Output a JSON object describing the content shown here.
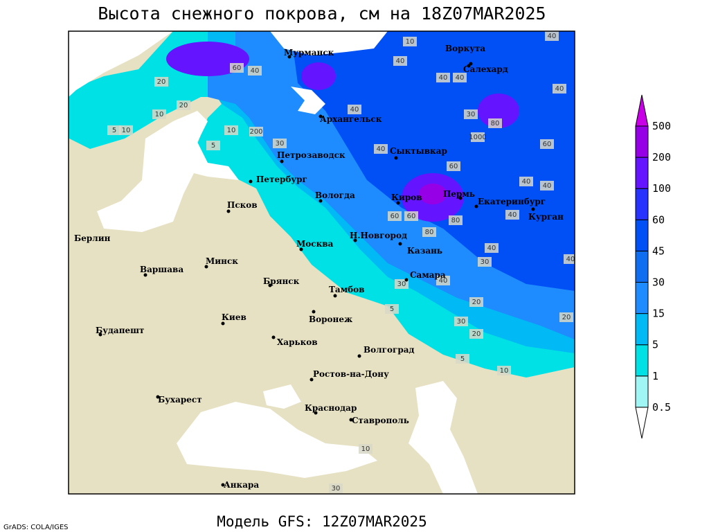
{
  "header": {
    "title": "Высота снежного покрова, см на 18Z07MAR2025"
  },
  "footer": {
    "model": "Модель GFS: 12Z07MAR2025",
    "credit": "GrADS: COLA/IGES"
  },
  "legend": {
    "levels": [
      0.5,
      1,
      5,
      15,
      30,
      45,
      60,
      100,
      200,
      500
    ],
    "colors": [
      "#ffffff",
      "#a0f5f5",
      "#00e1e6",
      "#00b9f5",
      "#1e8cff",
      "#0f6ef0",
      "#0050f5",
      "#2832ff",
      "#6414ff",
      "#9600e6",
      "#c800e6"
    ]
  },
  "cities": [
    "Мурманск",
    "Воркута",
    "Салехард",
    "Архангельск",
    "Сыктывкар",
    "Петрозаводск",
    "Петербург",
    "Вологда",
    "Киров",
    "Пермь",
    "Екатеринбург",
    "Курган",
    "Псков",
    "Москва",
    "Н.Новгород",
    "Казань",
    "Берлин",
    "Варшава",
    "Минск",
    "Брянск",
    "Тамбов",
    "Самара",
    "Киев",
    "Воронеж",
    "Харьков",
    "Волгоград",
    "Будапешт",
    "Ростов-на-Дону",
    "Бухарест",
    "Краснодар",
    "Ставрополь",
    "Анкара"
  ],
  "contour_labels": [
    40,
    10,
    60,
    40,
    40,
    20,
    10,
    40,
    20,
    5,
    10,
    5,
    10,
    200,
    30,
    40,
    40,
    40,
    30,
    1000,
    60,
    80,
    60,
    40,
    40,
    80,
    40,
    60,
    60,
    40,
    40,
    80,
    30,
    40,
    40,
    30,
    5,
    20,
    30,
    10,
    5,
    20,
    10,
    30,
    20
  ]
}
